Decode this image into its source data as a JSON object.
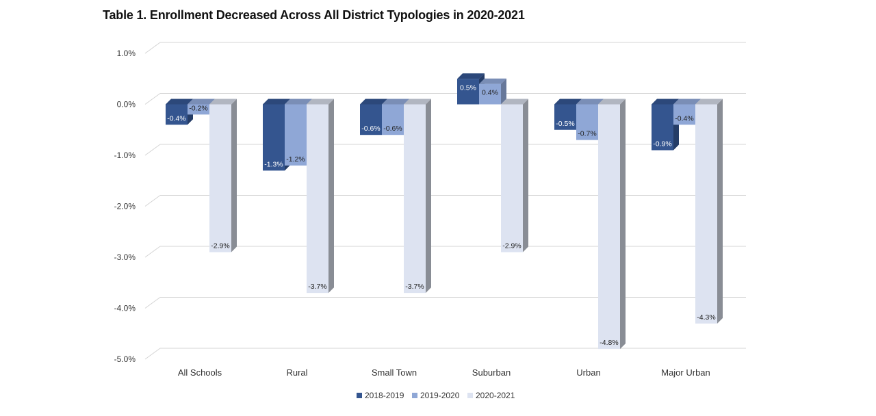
{
  "title": "Table 1. Enrollment Decreased Across All District Typologies in 2020-2021",
  "chart_data": {
    "type": "bar",
    "title": "Table 1. Enrollment Decreased Across All District Typologies in 2020-2021",
    "xlabel": "",
    "ylabel": "",
    "ylim": [
      -5.0,
      1.0
    ],
    "yticks": [
      1.0,
      0.0,
      -1.0,
      -2.0,
      -3.0,
      -4.0,
      -5.0
    ],
    "ytick_labels": [
      "1.0%",
      "0.0%",
      "-1.0%",
      "-2.0%",
      "-3.0%",
      "-4.0%",
      "-5.0%"
    ],
    "categories": [
      "All Schools",
      "Rural",
      "Small Town",
      "Suburban",
      "Urban",
      "Major Urban"
    ],
    "series": [
      {
        "name": "2018-2019",
        "color": "#34558f",
        "label_color": "#ffffff",
        "values": [
          -0.4,
          -1.3,
          -0.6,
          0.5,
          -0.5,
          -0.9
        ],
        "labels": [
          "-0.4%",
          "-1.3%",
          "-0.6%",
          "0.5%",
          "-0.5%",
          "-0.9%"
        ]
      },
      {
        "name": "2019-2020",
        "color": "#8fa7d6",
        "label_color": "#222222",
        "values": [
          -0.2,
          -1.2,
          -0.6,
          0.4,
          -0.7,
          -0.4
        ],
        "labels": [
          "-0.2%",
          "-1.2%",
          "-0.6%",
          "0.4%",
          "-0.7%",
          "-0.4%"
        ]
      },
      {
        "name": "2020-2021",
        "color": "#dde3f1",
        "label_color": "#222222",
        "values": [
          -2.9,
          -3.7,
          -3.7,
          -2.9,
          -4.8,
          -4.3
        ],
        "labels": [
          "-2.9%",
          "-3.7%",
          "-3.7%",
          "-2.9%",
          "-4.8%",
          "-4.3%"
        ]
      }
    ],
    "grid": true,
    "style": "3d-column",
    "legend": "bottom-center"
  }
}
